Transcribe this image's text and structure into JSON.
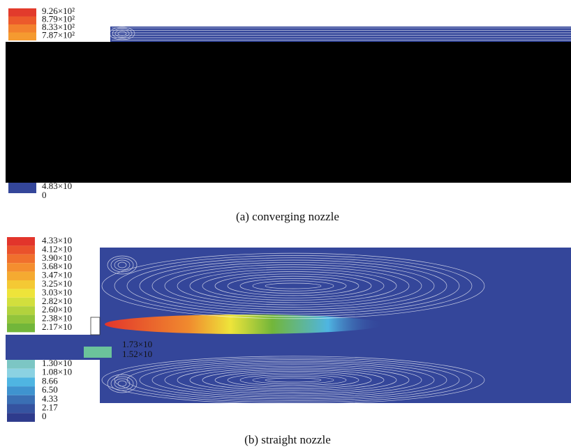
{
  "panel_a": {
    "legend": [
      {
        "label": "9.26×10²",
        "color": "#e23b2c"
      },
      {
        "label": "8.79×10²",
        "color": "#ec5a2b"
      },
      {
        "label": "8.33×10²",
        "color": "#f3812e"
      },
      {
        "label": "7.87×10²",
        "color": "#f59a30"
      },
      {
        "label": "4.83×10",
        "color": "#34469a"
      },
      {
        "label": "0"
      }
    ],
    "caption": "(a) converging nozzle"
  },
  "panel_b": {
    "legend": [
      {
        "label": "4.33×10",
        "color": "#e2352b"
      },
      {
        "label": "4.12×10",
        "color": "#ea522b"
      },
      {
        "label": "3.90×10",
        "color": "#f0702d"
      },
      {
        "label": "3.68×10",
        "color": "#f48e2f"
      },
      {
        "label": "3.47×10",
        "color": "#f5aa31"
      },
      {
        "label": "3.25×10",
        "color": "#f4c934"
      },
      {
        "label": "3.03×10",
        "color": "#eee43a"
      },
      {
        "label": "2.82×10",
        "color": "#d2df3d"
      },
      {
        "label": "2.60×10",
        "color": "#b2d23d"
      },
      {
        "label": "2.38×10",
        "color": "#92c43b"
      },
      {
        "label": "2.17×10",
        "color": "#72b63a"
      },
      {
        "label": "1.73×10",
        "color": "#6bc39b"
      },
      {
        "label": "1.52×10"
      },
      {
        "label": "1.30×10",
        "color": "#7cc6c4"
      },
      {
        "label": "1.08×10",
        "color": "#8bd2e2"
      },
      {
        "label": "8.66",
        "color": "#4fb5e2"
      },
      {
        "label": "6.50",
        "color": "#3f93cf"
      },
      {
        "label": "4.33",
        "color": "#3a6fb4"
      },
      {
        "label": "2.17",
        "color": "#3553a0"
      },
      {
        "label": "0",
        "color": "#2e3b8c"
      }
    ],
    "caption": "(b) straight nozzle"
  }
}
